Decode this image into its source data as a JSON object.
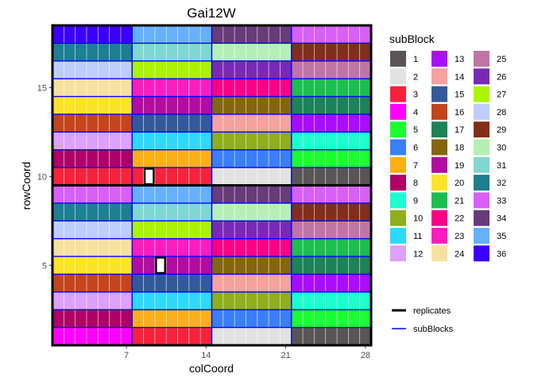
{
  "chart_data": {
    "type": "heatmap",
    "title": "Gai12W",
    "xlabel": "colCoord",
    "ylabel": "rowCoord",
    "xlim": [
      0.5,
      28.5
    ],
    "ylim": [
      0.5,
      18.5
    ],
    "x_ticks": [
      7,
      14,
      21,
      28
    ],
    "y_ticks": [
      5,
      10,
      15
    ],
    "legend_title": "subBlock",
    "legend": {
      "subBlocks": [
        {
          "id": 1,
          "color": "#5b5457"
        },
        {
          "id": 2,
          "color": "#e2e2e2"
        },
        {
          "id": 3,
          "color": "#f8213a"
        },
        {
          "id": 4,
          "color": "#ff00ff"
        },
        {
          "id": 5,
          "color": "#19ff2f"
        },
        {
          "id": 6,
          "color": "#3a7ff6"
        },
        {
          "id": 7,
          "color": "#feaf16"
        },
        {
          "id": 8,
          "color": "#b00068"
        },
        {
          "id": 9,
          "color": "#1cffce"
        },
        {
          "id": 10,
          "color": "#90ad1c"
        },
        {
          "id": 11,
          "color": "#2ed9ff"
        },
        {
          "id": 12,
          "color": "#dea0fd"
        },
        {
          "id": 13,
          "color": "#aa0dfe"
        },
        {
          "id": 14,
          "color": "#f8a19f"
        },
        {
          "id": 15,
          "color": "#325a9b"
        },
        {
          "id": 16,
          "color": "#c4451c"
        },
        {
          "id": 17,
          "color": "#1c8356"
        },
        {
          "id": 18,
          "color": "#85660d"
        },
        {
          "id": 19,
          "color": "#b10da1"
        },
        {
          "id": 20,
          "color": "#fbe426"
        },
        {
          "id": 21,
          "color": "#1cbe4f"
        },
        {
          "id": 22,
          "color": "#fa0087"
        },
        {
          "id": 23,
          "color": "#fc1cbf"
        },
        {
          "id": 24,
          "color": "#f7e1a0"
        },
        {
          "id": 25,
          "color": "#c075a6"
        },
        {
          "id": 26,
          "color": "#782ab6"
        },
        {
          "id": 27,
          "color": "#aaf400"
        },
        {
          "id": 28,
          "color": "#bdcdff"
        },
        {
          "id": 29,
          "color": "#822e1c"
        },
        {
          "id": 30,
          "color": "#b5efb5"
        },
        {
          "id": 31,
          "color": "#7ed7d1"
        },
        {
          "id": 32,
          "color": "#1c7f93"
        },
        {
          "id": 33,
          "color": "#d85ff7"
        },
        {
          "id": 34,
          "color": "#683b79"
        },
        {
          "id": 35,
          "color": "#66b0ff"
        },
        {
          "id": 36,
          "color": "#3b00fb"
        }
      ],
      "lines": [
        {
          "label": "replicates",
          "color": "#000000"
        },
        {
          "label": "subBlocks",
          "color": "#0000ff"
        }
      ]
    },
    "block_rows": [
      [
        36,
        35,
        34,
        33
      ],
      [
        32,
        31,
        30,
        29
      ],
      [
        28,
        27,
        26,
        25
      ],
      [
        24,
        23,
        22,
        21
      ],
      [
        20,
        19,
        18,
        17
      ],
      [
        16,
        15,
        14,
        13
      ],
      [
        12,
        11,
        10,
        9
      ],
      [
        8,
        7,
        6,
        5
      ],
      [
        3,
        3,
        2,
        1
      ],
      [
        33,
        35,
        34,
        33
      ],
      [
        32,
        31,
        30,
        29
      ],
      [
        28,
        27,
        26,
        25
      ],
      [
        24,
        23,
        22,
        21
      ],
      [
        20,
        19,
        18,
        17
      ],
      [
        16,
        15,
        14,
        13
      ],
      [
        12,
        11,
        10,
        9
      ],
      [
        8,
        7,
        6,
        5
      ],
      [
        4,
        3,
        2,
        1
      ]
    ],
    "block_cols": [
      [
        1,
        7
      ],
      [
        8,
        14
      ],
      [
        15,
        21
      ],
      [
        22,
        28
      ]
    ],
    "highlighted_cells": [
      {
        "col": 9,
        "row": 10
      },
      {
        "col": 10,
        "row": 5
      }
    ]
  }
}
